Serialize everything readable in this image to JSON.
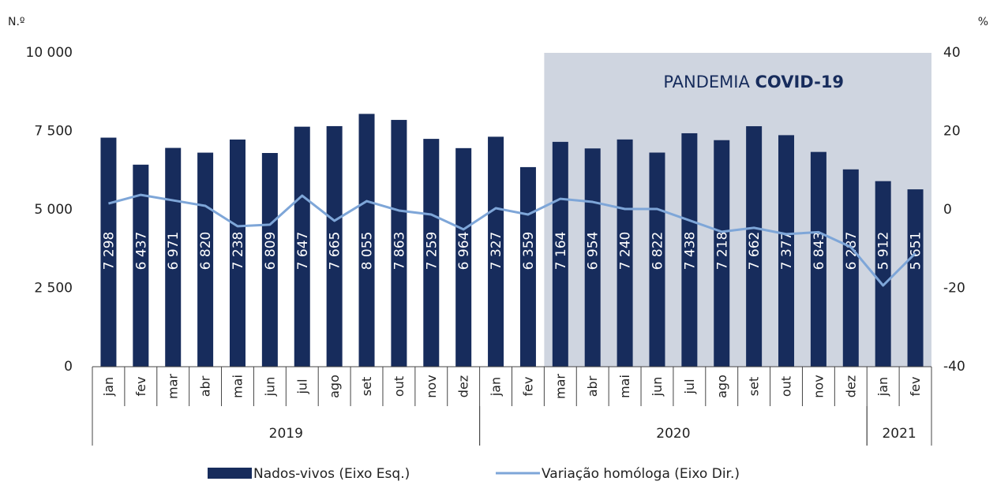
{
  "chart_data": {
    "type": "combo",
    "y_axis_label": "N.º",
    "y2_axis_label": "%",
    "annotation": {
      "text": "PANDEMIA",
      "bold": "COVID-19"
    },
    "shaded_range": [
      14,
      25
    ],
    "categories": [
      "jan",
      "fev",
      "mar",
      "abr",
      "mai",
      "jun",
      "jul",
      "ago",
      "set",
      "out",
      "nov",
      "dez",
      "jan",
      "fev",
      "mar",
      "abr",
      "mai",
      "jun",
      "jul",
      "ago",
      "set",
      "out",
      "nov",
      "dez",
      "jan",
      "fev"
    ],
    "groups": [
      {
        "label": "2019",
        "span": 12
      },
      {
        "label": "2020",
        "span": 12
      },
      {
        "label": "2021",
        "span": 2
      }
    ],
    "series": [
      {
        "name": "Nados-vivos (Eixo Esq.)",
        "type": "bar",
        "color": "#172c5c",
        "values": [
          7298,
          6437,
          6971,
          6820,
          7238,
          6809,
          7647,
          7665,
          8055,
          7863,
          7259,
          6964,
          7327,
          6359,
          7164,
          6954,
          7240,
          6822,
          7438,
          7218,
          7662,
          7377,
          6843,
          6287,
          5912,
          5651
        ],
        "value_labels": [
          "7 298",
          "6 437",
          "6 971",
          "6 820",
          "7 238",
          "6 809",
          "7 647",
          "7 665",
          "8 055",
          "7 863",
          "7 259",
          "6 964",
          "7 327",
          "6 359",
          "7 164",
          "6 954",
          "7 240",
          "6 822",
          "7 438",
          "7 218",
          "7 662",
          "7 377",
          "6 843",
          "6 287",
          "5 912",
          "5 651"
        ]
      },
      {
        "name": "Variação homóloga (Eixo Dir.)",
        "type": "line",
        "axis": "y2",
        "color": "#7ea6d8",
        "values": [
          1.6,
          3.8,
          2.4,
          1.0,
          -4.2,
          -3.8,
          3.6,
          -2.8,
          2.2,
          -0.2,
          -1.2,
          -5.0,
          0.4,
          -1.2,
          2.8,
          2.0,
          0.2,
          0.2,
          -2.7,
          -5.6,
          -4.6,
          -6.2,
          -5.7,
          -9.5,
          -19.3,
          -11.1
        ]
      }
    ],
    "ylim": [
      0,
      10000
    ],
    "yticks": [
      0,
      {
        "value": 2500,
        "label": "2 500"
      },
      {
        "value": 5000,
        "label": "5 000"
      },
      {
        "value": 7500,
        "label": "7 500"
      },
      {
        "value": 10000,
        "label": "10 000"
      }
    ],
    "y2lim": [
      -40,
      40
    ],
    "y2ticks": [
      -40,
      -20,
      0,
      20,
      40
    ]
  }
}
